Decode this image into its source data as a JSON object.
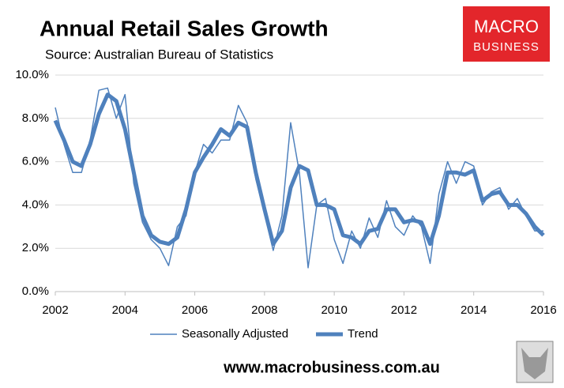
{
  "chart_data": {
    "type": "line",
    "title": "Annual Retail Sales Growth",
    "subtitle": "Source: Australian Bureau of Statistics",
    "brand": [
      "MACRO",
      "BUSINESS"
    ],
    "footer": "www.macrobusiness.com.au",
    "x": [
      2002,
      2002.25,
      2002.5,
      2002.75,
      2003,
      2003.25,
      2003.5,
      2003.75,
      2004,
      2004.25,
      2004.5,
      2004.75,
      2005,
      2005.25,
      2005.5,
      2005.75,
      2006,
      2006.25,
      2006.5,
      2006.75,
      2007,
      2007.25,
      2007.5,
      2007.75,
      2008,
      2008.25,
      2008.5,
      2008.75,
      2009,
      2009.25,
      2009.5,
      2009.75,
      2010,
      2010.25,
      2010.5,
      2010.75,
      2011,
      2011.25,
      2011.5,
      2011.75,
      2012,
      2012.25,
      2012.5,
      2012.75,
      2013,
      2013.25,
      2013.5,
      2013.75,
      2014,
      2014.25,
      2014.5,
      2014.75,
      2015,
      2015.25,
      2015.5,
      2015.75,
      2016
    ],
    "series": [
      {
        "name": "Seasonally Adjusted",
        "color": "#4f81bd",
        "values": [
          8.5,
          6.8,
          5.5,
          5.5,
          7.0,
          9.3,
          9.4,
          8.0,
          9.1,
          5.0,
          3.2,
          2.4,
          2.0,
          1.2,
          3.0,
          3.5,
          5.5,
          6.8,
          6.4,
          7.0,
          7.0,
          8.6,
          7.8,
          5.2,
          3.6,
          1.9,
          3.5,
          7.8,
          5.5,
          1.1,
          4.0,
          4.3,
          2.4,
          1.3,
          2.8,
          2.0,
          3.4,
          2.5,
          4.2,
          3.0,
          2.6,
          3.5,
          3.0,
          1.3,
          4.5,
          6.0,
          5.0,
          6.0,
          5.8,
          4.0,
          4.6,
          4.8,
          3.8,
          4.3,
          3.5,
          2.8,
          2.8
        ]
      },
      {
        "name": "Trend",
        "color": "#4f81bd",
        "values": [
          7.9,
          7.0,
          6.0,
          5.8,
          6.8,
          8.2,
          9.1,
          8.8,
          7.5,
          5.5,
          3.5,
          2.6,
          2.3,
          2.2,
          2.5,
          3.8,
          5.5,
          6.2,
          6.8,
          7.5,
          7.2,
          7.8,
          7.6,
          5.5,
          3.8,
          2.2,
          2.8,
          4.8,
          5.8,
          5.6,
          4.0,
          4.0,
          3.8,
          2.6,
          2.5,
          2.2,
          2.8,
          2.9,
          3.8,
          3.8,
          3.2,
          3.3,
          3.2,
          2.2,
          3.5,
          5.5,
          5.5,
          5.4,
          5.6,
          4.2,
          4.5,
          4.6,
          4.0,
          4.0,
          3.6,
          3.0,
          2.6
        ]
      }
    ],
    "xlim": [
      2002,
      2016
    ],
    "xticks": [
      2002,
      2004,
      2006,
      2008,
      2010,
      2012,
      2014,
      2016
    ],
    "ylim": [
      0,
      10
    ],
    "yticks": [
      {
        "value": 0,
        "label": "0.0%"
      },
      {
        "value": 2,
        "label": "2.0%"
      },
      {
        "value": 4,
        "label": "4.0%"
      },
      {
        "value": 6,
        "label": "6.0%"
      },
      {
        "value": 8,
        "label": "8.0%"
      },
      {
        "value": 10,
        "label": "10.0%"
      }
    ],
    "grid": true,
    "legend": "bottom"
  }
}
